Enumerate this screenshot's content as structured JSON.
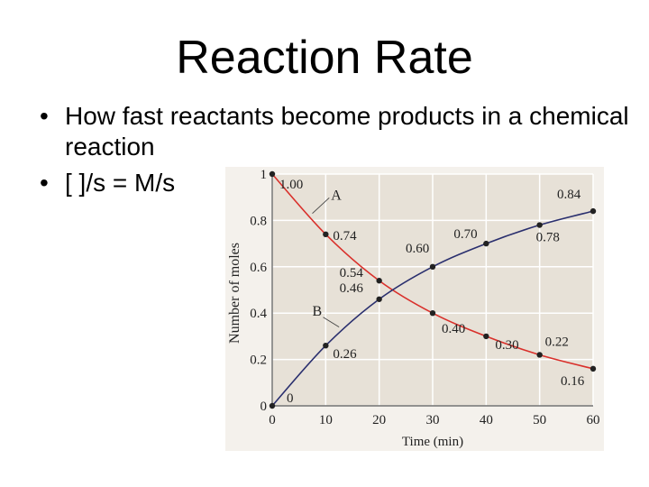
{
  "slide": {
    "title": "Reaction Rate",
    "bullets": [
      "How fast reactants become products in a chemical reaction",
      "[ ]/s = M/s"
    ]
  },
  "chart_data": {
    "type": "line",
    "xlabel": "Time (min)",
    "ylabel": "Number of moles",
    "xlim": [
      0,
      60
    ],
    "ylim": [
      0,
      1
    ],
    "xticks": [
      "0",
      "10",
      "20",
      "30",
      "40",
      "50",
      "60"
    ],
    "yticks": [
      "0",
      "0.2",
      "0.4",
      "0.6",
      "0.8",
      "1"
    ],
    "grid": true,
    "x": [
      0,
      10,
      20,
      30,
      40,
      50,
      60
    ],
    "series": [
      {
        "name": "A",
        "color": "#d9302b",
        "values": [
          1.0,
          0.74,
          0.54,
          0.4,
          0.3,
          0.22,
          0.16
        ],
        "labels": [
          "1.00",
          "0.74",
          "0.54",
          "0.40",
          "0.30",
          "0.22",
          "0.16"
        ]
      },
      {
        "name": "B",
        "color": "#2a2f6e",
        "values": [
          0,
          0.26,
          0.46,
          0.6,
          0.7,
          0.78,
          0.84
        ],
        "labels": [
          "0",
          "0.26",
          "0.46",
          "0.60",
          "0.70",
          "0.78",
          "0.84"
        ]
      }
    ]
  }
}
